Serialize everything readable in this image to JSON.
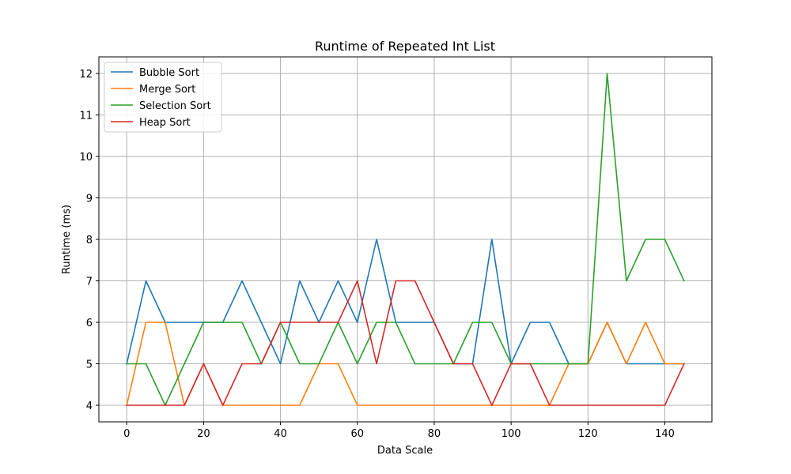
{
  "chart_data": {
    "type": "line",
    "title": "Runtime of Repeated Int List",
    "xlabel": "Data Scale",
    "ylabel": "Runtime (ms)",
    "xlim": [
      -7.25,
      152.25
    ],
    "ylim": [
      3.6,
      12.4
    ],
    "xticks": [
      0,
      20,
      40,
      60,
      80,
      100,
      120,
      140
    ],
    "yticks": [
      4,
      5,
      6,
      7,
      8,
      9,
      10,
      11,
      12
    ],
    "grid": true,
    "legend_position": "upper-left",
    "x": [
      0,
      5,
      10,
      15,
      20,
      25,
      30,
      35,
      40,
      45,
      50,
      55,
      60,
      65,
      70,
      75,
      80,
      85,
      90,
      95,
      100,
      105,
      110,
      115,
      120,
      125,
      130,
      135,
      140,
      145
    ],
    "series": [
      {
        "name": "Bubble Sort",
        "color": "#1f77b4",
        "values": [
          5,
          7,
          6,
          6,
          6,
          6,
          7,
          6,
          5,
          7,
          6,
          7,
          6,
          8,
          6,
          6,
          6,
          5,
          5,
          8,
          5,
          6,
          6,
          5,
          5,
          6,
          5,
          5,
          5,
          5
        ]
      },
      {
        "name": "Merge Sort",
        "color": "#ff7f0e",
        "values": [
          4,
          6,
          6,
          4,
          5,
          4,
          4,
          4,
          4,
          4,
          5,
          5,
          4,
          4,
          4,
          4,
          4,
          4,
          4,
          4,
          4,
          4,
          4,
          5,
          5,
          6,
          5,
          6,
          5,
          5
        ]
      },
      {
        "name": "Selection Sort",
        "color": "#2ca02c",
        "values": [
          5,
          5,
          4,
          5,
          6,
          6,
          6,
          5,
          6,
          5,
          5,
          6,
          5,
          6,
          6,
          5,
          5,
          5,
          6,
          6,
          5,
          5,
          5,
          5,
          5,
          12,
          7,
          8,
          8,
          7
        ]
      },
      {
        "name": "Heap Sort",
        "color": "#d62728",
        "values": [
          4,
          4,
          4,
          4,
          5,
          4,
          5,
          5,
          6,
          6,
          6,
          6,
          7,
          5,
          7,
          7,
          6,
          5,
          5,
          4,
          5,
          5,
          4,
          4,
          4,
          4,
          4,
          4,
          4,
          5
        ]
      }
    ]
  }
}
